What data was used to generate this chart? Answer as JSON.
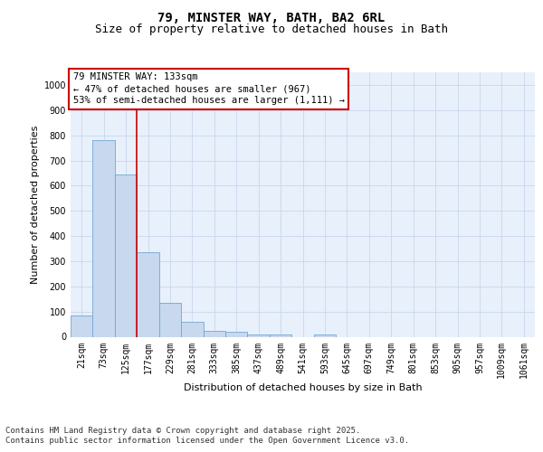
{
  "title1": "79, MINSTER WAY, BATH, BA2 6RL",
  "title2": "Size of property relative to detached houses in Bath",
  "xlabel": "Distribution of detached houses by size in Bath",
  "ylabel": "Number of detached properties",
  "categories": [
    "21sqm",
    "73sqm",
    "125sqm",
    "177sqm",
    "229sqm",
    "281sqm",
    "333sqm",
    "385sqm",
    "437sqm",
    "489sqm",
    "541sqm",
    "593sqm",
    "645sqm",
    "697sqm",
    "749sqm",
    "801sqm",
    "853sqm",
    "905sqm",
    "957sqm",
    "1009sqm",
    "1061sqm"
  ],
  "values": [
    85,
    780,
    645,
    335,
    135,
    60,
    22,
    18,
    8,
    8,
    0,
    8,
    0,
    0,
    0,
    0,
    0,
    0,
    0,
    0,
    0
  ],
  "bar_color": "#c8d8ef",
  "bar_edge_color": "#6fa8d4",
  "background_color": "#e8f0fb",
  "vline_x": 2.5,
  "vline_color": "#cc0000",
  "annotation_text": "79 MINSTER WAY: 133sqm\n← 47% of detached houses are smaller (967)\n53% of semi-detached houses are larger (1,111) →",
  "annotation_box_facecolor": "#ffffff",
  "annotation_box_edgecolor": "#cc0000",
  "ylim_max": 1050,
  "yticks": [
    0,
    100,
    200,
    300,
    400,
    500,
    600,
    700,
    800,
    900,
    1000
  ],
  "footer_line1": "Contains HM Land Registry data © Crown copyright and database right 2025.",
  "footer_line2": "Contains public sector information licensed under the Open Government Licence v3.0.",
  "grid_color": "#c8d8ec",
  "title1_fontsize": 10,
  "title2_fontsize": 9,
  "axis_label_fontsize": 8,
  "tick_fontsize": 7,
  "annotation_fontsize": 7.5,
  "footer_fontsize": 6.5
}
